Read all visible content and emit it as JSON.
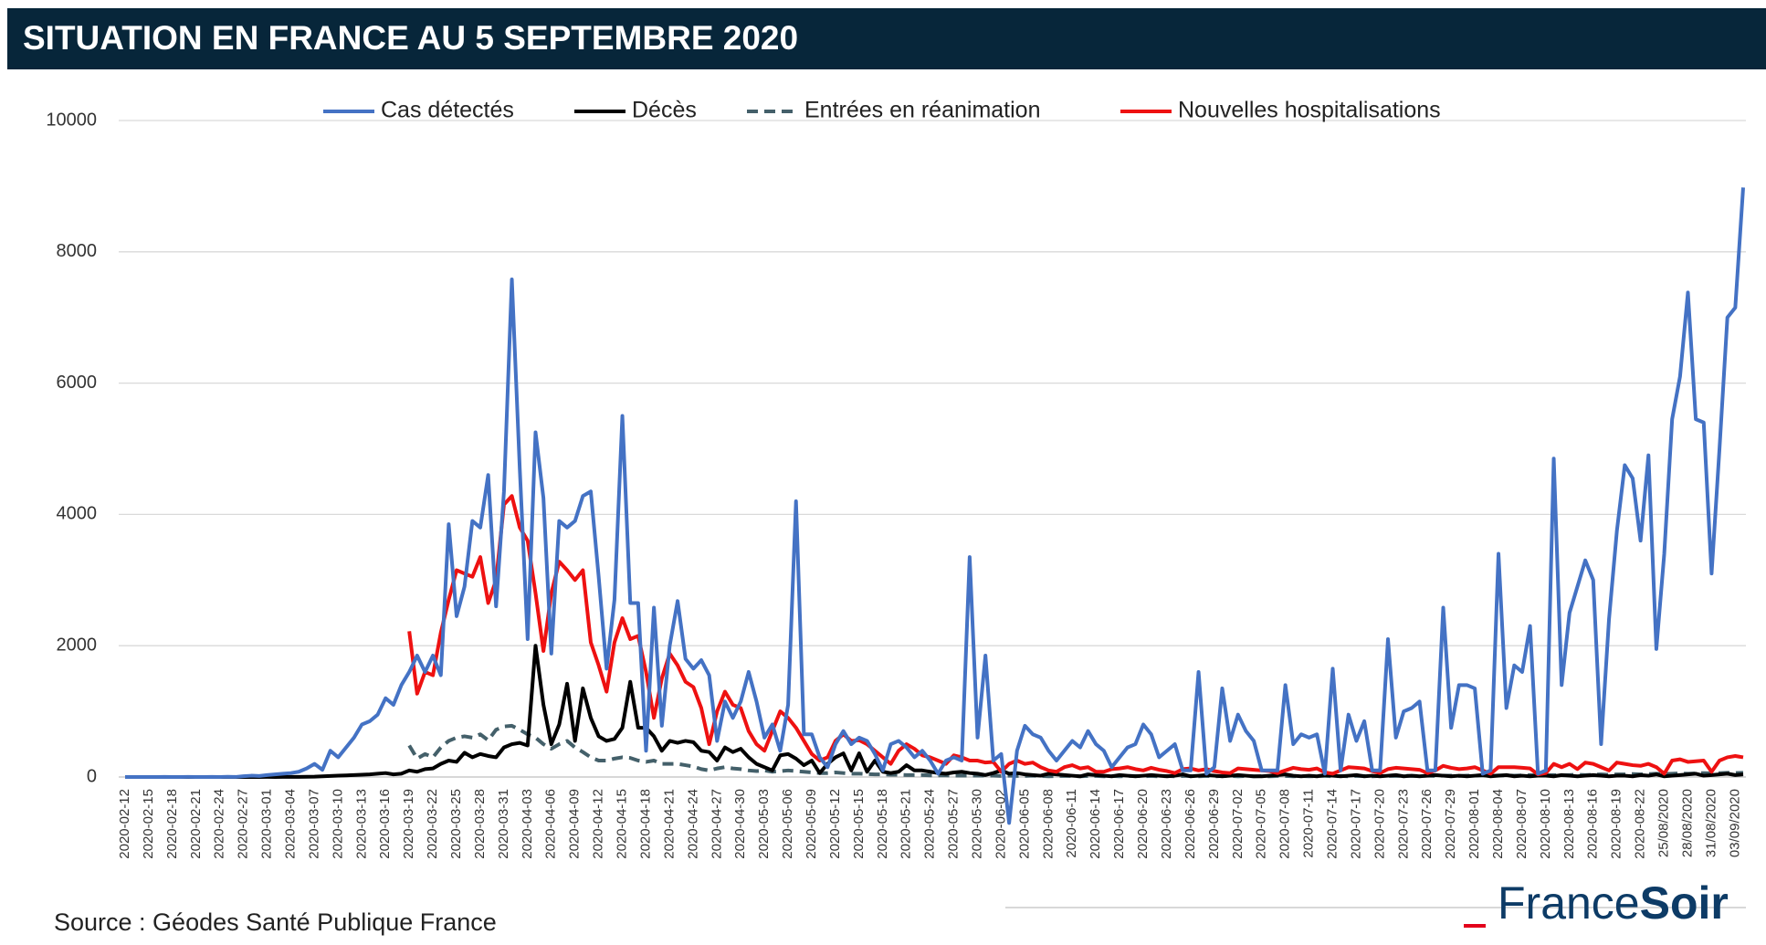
{
  "chart_data": {
    "type": "line",
    "title": "SITUATION EN FRANCE AU 5 SEPTEMBRE 2020",
    "source": "Source : Géodes Santé Publique France",
    "logo": {
      "light": "France",
      "bold": "Soir"
    },
    "ylim": [
      0,
      10000
    ],
    "yticks": [
      0,
      2000,
      4000,
      6000,
      8000,
      10000
    ],
    "grid": true,
    "legend": "top",
    "categories": [
      "2020-02-12",
      null,
      null,
      "2020-02-15",
      null,
      null,
      "2020-02-18",
      null,
      null,
      "2020-02-21",
      null,
      null,
      "2020-02-24",
      null,
      null,
      "2020-02-27",
      null,
      null,
      "2020-03-01",
      null,
      null,
      "2020-03-04",
      null,
      null,
      "2020-03-07",
      null,
      null,
      "2020-03-10",
      null,
      null,
      "2020-03-13",
      null,
      null,
      "2020-03-16",
      null,
      null,
      "2020-03-19",
      null,
      null,
      "2020-03-22",
      null,
      null,
      "2020-03-25",
      null,
      null,
      "2020-03-28",
      null,
      null,
      "2020-03-31",
      null,
      null,
      "2020-04-03",
      null,
      null,
      "2020-04-06",
      null,
      null,
      "2020-04-09",
      null,
      null,
      "2020-04-12",
      null,
      null,
      "2020-04-15",
      null,
      null,
      "2020-04-18",
      null,
      null,
      "2020-04-21",
      null,
      null,
      "2020-04-24",
      null,
      null,
      "2020-04-27",
      null,
      null,
      "2020-04-30",
      null,
      null,
      "2020-05-03",
      null,
      null,
      "2020-05-06",
      null,
      null,
      "2020-05-09",
      null,
      null,
      "2020-05-12",
      null,
      null,
      "2020-05-15",
      null,
      null,
      "2020-05-18",
      null,
      null,
      "2020-05-21",
      null,
      null,
      "2020-05-24",
      null,
      null,
      "2020-05-27",
      null,
      null,
      "2020-05-30",
      null,
      null,
      "2020-06-02",
      null,
      null,
      "2020-06-05",
      null,
      null,
      "2020-06-08",
      null,
      null,
      "2020-06-11",
      null,
      null,
      "2020-06-14",
      null,
      null,
      "2020-06-17",
      null,
      null,
      "2020-06-20",
      null,
      null,
      "2020-06-23",
      null,
      null,
      "2020-06-26",
      null,
      null,
      "2020-06-29",
      null,
      null,
      "2020-07-02",
      null,
      null,
      "2020-07-05",
      null,
      null,
      "2020-07-08",
      null,
      null,
      "2020-07-11",
      null,
      null,
      "2020-07-14",
      null,
      null,
      "2020-07-17",
      null,
      null,
      "2020-07-20",
      null,
      null,
      "2020-07-23",
      null,
      null,
      "2020-07-26",
      null,
      null,
      "2020-07-29",
      null,
      null,
      "2020-08-01",
      null,
      null,
      "2020-08-04",
      null,
      null,
      "2020-08-07",
      null,
      null,
      "2020-08-10",
      null,
      null,
      "2020-08-13",
      null,
      null,
      "2020-08-16",
      null,
      null,
      "2020-08-19",
      null,
      null,
      "2020-08-22",
      null,
      null,
      "25/08/2020",
      null,
      null,
      "28/08/2020",
      null,
      null,
      "31/08/2020",
      null,
      null,
      "03/09/2020",
      null
    ],
    "series": [
      {
        "name": "Cas détectés",
        "color": "#4472c4",
        "dash": false,
        "values": [
          0,
          0,
          0,
          0,
          0,
          2,
          0,
          0,
          1,
          0,
          0,
          2,
          0,
          4,
          1,
          12,
          20,
          15,
          30,
          40,
          50,
          60,
          80,
          130,
          200,
          110,
          400,
          300,
          450,
          600,
          800,
          850,
          950,
          1200,
          1100,
          1400,
          1600,
          1850,
          1600,
          1850,
          1550,
          3850,
          2450,
          2900,
          3900,
          3800,
          4600,
          2600,
          4350,
          7580,
          4700,
          2100,
          5250,
          4250,
          1880,
          3900,
          3800,
          3900,
          4280,
          4350,
          3050,
          1650,
          2700,
          5500,
          2650,
          2650,
          400,
          2580,
          780,
          2000,
          2680,
          1800,
          1650,
          1780,
          1550,
          550,
          1150,
          900,
          1150,
          1600,
          1150,
          600,
          800,
          400,
          1100,
          4200,
          650,
          650,
          300,
          150,
          500,
          700,
          500,
          600,
          550,
          350,
          100,
          500,
          550,
          450,
          300,
          400,
          250,
          50,
          250,
          300,
          250,
          3350,
          600,
          1850,
          250,
          350,
          -700,
          400,
          780,
          650,
          600,
          400,
          250,
          400,
          550,
          450,
          700,
          500,
          400,
          150,
          300,
          450,
          500,
          800,
          650,
          300,
          400,
          500,
          100,
          100,
          1600,
          50,
          150,
          1350,
          550,
          950,
          700,
          550,
          100,
          100,
          100,
          1400,
          500,
          650,
          600,
          650,
          50,
          1650,
          100,
          950,
          550,
          850,
          100,
          100,
          2100,
          600,
          1000,
          1050,
          1150,
          100,
          100,
          2580,
          750,
          1400,
          1400,
          1350,
          50,
          100,
          3400,
          1050,
          1700,
          1600,
          2300,
          50,
          100,
          4850,
          1400,
          2500,
          2900,
          3300,
          3000,
          500,
          2400,
          3750,
          4750,
          4550,
          3600,
          4900,
          1950,
          3400,
          5450,
          6100,
          7380,
          5450,
          5400,
          3100,
          5000,
          7000,
          7150,
          8980
        ]
      },
      {
        "name": "Décès",
        "color": "#000000",
        "dash": false,
        "values": [
          0,
          0,
          0,
          0,
          0,
          0,
          0,
          0,
          0,
          0,
          0,
          0,
          0,
          0,
          0,
          0,
          0,
          0,
          1,
          0,
          1,
          2,
          2,
          3,
          5,
          10,
          15,
          20,
          25,
          30,
          35,
          40,
          50,
          60,
          40,
          50,
          100,
          80,
          120,
          130,
          200,
          250,
          230,
          370,
          300,
          350,
          320,
          300,
          450,
          500,
          520,
          480,
          2000,
          1100,
          500,
          800,
          1420,
          550,
          1350,
          900,
          620,
          550,
          580,
          750,
          1450,
          750,
          750,
          620,
          400,
          550,
          520,
          550,
          530,
          400,
          380,
          250,
          450,
          380,
          430,
          300,
          200,
          150,
          100,
          330,
          350,
          280,
          180,
          250,
          60,
          200,
          300,
          360,
          100,
          360,
          80,
          250,
          80,
          60,
          80,
          180,
          100,
          100,
          80,
          60,
          50,
          70,
          80,
          60,
          50,
          30,
          60,
          100,
          50,
          60,
          40,
          30,
          20,
          50,
          40,
          30,
          20,
          10,
          40,
          30,
          20,
          10,
          30,
          20,
          10,
          20,
          30,
          20,
          10,
          20,
          40,
          10,
          20,
          30,
          20,
          10,
          20,
          30,
          20,
          10,
          10,
          20,
          30,
          40,
          20,
          10,
          20,
          10,
          30,
          20,
          10,
          20,
          30,
          10,
          20,
          10,
          20,
          30,
          10,
          20,
          10,
          20,
          30,
          20,
          10,
          20,
          10,
          20,
          30,
          10,
          20,
          30,
          10,
          20,
          10,
          20,
          20,
          10,
          30,
          20,
          10,
          20,
          30,
          20,
          10,
          20,
          20,
          10,
          30,
          20,
          40,
          10,
          20,
          30,
          40,
          50,
          20,
          30,
          40,
          50,
          30,
          40
        ]
      },
      {
        "name": "Entrées en réanimation",
        "color": "#44606a",
        "dash": true,
        "values": [
          null,
          null,
          null,
          null,
          null,
          null,
          null,
          null,
          null,
          null,
          null,
          null,
          null,
          null,
          null,
          null,
          null,
          null,
          null,
          null,
          null,
          null,
          null,
          null,
          null,
          null,
          null,
          null,
          null,
          null,
          null,
          null,
          null,
          null,
          null,
          null,
          480,
          280,
          350,
          300,
          450,
          550,
          600,
          620,
          600,
          650,
          560,
          720,
          770,
          780,
          720,
          650,
          600,
          500,
          430,
          500,
          550,
          450,
          380,
          300,
          250,
          250,
          280,
          300,
          290,
          250,
          230,
          250,
          200,
          200,
          200,
          180,
          160,
          120,
          100,
          130,
          150,
          130,
          120,
          100,
          90,
          100,
          80,
          90,
          100,
          90,
          80,
          70,
          60,
          60,
          70,
          60,
          50,
          50,
          45,
          40,
          40,
          35,
          35,
          30,
          30,
          30,
          25,
          25,
          25,
          20,
          20,
          20,
          20,
          20,
          20,
          15,
          20,
          15,
          15,
          20,
          15,
          10,
          15,
          15,
          15,
          10,
          15,
          15,
          10,
          15,
          10,
          15,
          15,
          10,
          15,
          10,
          15,
          10,
          15,
          15,
          10,
          15,
          10,
          15,
          15,
          10,
          15,
          10,
          15,
          10,
          15,
          15,
          10,
          15,
          10,
          15,
          15,
          10,
          15,
          10,
          15,
          15,
          10,
          15,
          15,
          15,
          20,
          15,
          15,
          20,
          15,
          20,
          20,
          15,
          20,
          20,
          25,
          20,
          25,
          25,
          20,
          25,
          30,
          25,
          30,
          30,
          25,
          30,
          35,
          30,
          35,
          40,
          35,
          40,
          40,
          45,
          40,
          45,
          50,
          45,
          50,
          55,
          50,
          55,
          60,
          55,
          60,
          65,
          60,
          65
        ]
      },
      {
        "name": "Nouvelles hospitalisations",
        "color": "#ee1111",
        "dash": false,
        "values": [
          null,
          null,
          null,
          null,
          null,
          null,
          null,
          null,
          null,
          null,
          null,
          null,
          null,
          null,
          null,
          null,
          null,
          null,
          null,
          null,
          null,
          null,
          null,
          null,
          null,
          null,
          null,
          null,
          null,
          null,
          null,
          null,
          null,
          null,
          null,
          null,
          2220,
          1270,
          1600,
          1550,
          2200,
          2700,
          3150,
          3100,
          3050,
          3350,
          2650,
          3000,
          4150,
          4280,
          3800,
          3600,
          2800,
          1920,
          2800,
          3280,
          3150,
          3000,
          3150,
          2050,
          1700,
          1300,
          2050,
          2420,
          2100,
          2150,
          1600,
          900,
          1500,
          1880,
          1700,
          1450,
          1370,
          1050,
          500,
          1000,
          1300,
          1100,
          1050,
          700,
          500,
          400,
          700,
          1000,
          900,
          750,
          550,
          350,
          250,
          300,
          550,
          650,
          550,
          560,
          500,
          400,
          300,
          200,
          400,
          500,
          430,
          330,
          300,
          250,
          200,
          330,
          300,
          250,
          250,
          220,
          230,
          80,
          200,
          250,
          200,
          220,
          150,
          100,
          80,
          150,
          180,
          130,
          150,
          80,
          80,
          120,
          130,
          150,
          120,
          100,
          140,
          110,
          90,
          60,
          120,
          130,
          100,
          120,
          90,
          70,
          60,
          130,
          120,
          110,
          100,
          90,
          60,
          100,
          140,
          120,
          110,
          130,
          70,
          50,
          100,
          150,
          140,
          130,
          90,
          60,
          120,
          140,
          130,
          120,
          110,
          60,
          100,
          170,
          140,
          120,
          130,
          150,
          100,
          50,
          150,
          150,
          150,
          140,
          130,
          40,
          60,
          200,
          150,
          200,
          120,
          220,
          200,
          150,
          100,
          220,
          200,
          180,
          170,
          200,
          150,
          50,
          250,
          270,
          230,
          240,
          250,
          80,
          250,
          300,
          320,
          300
        ]
      }
    ]
  }
}
